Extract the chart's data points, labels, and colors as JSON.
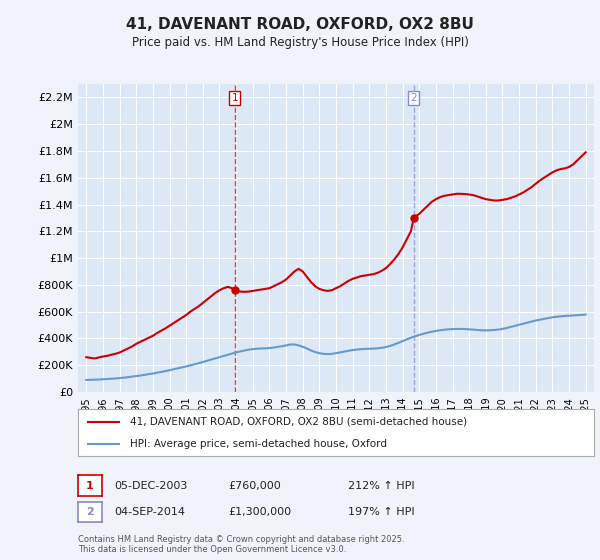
{
  "title": "41, DAVENANT ROAD, OXFORD, OX2 8BU",
  "subtitle": "Price paid vs. HM Land Registry's House Price Index (HPI)",
  "xlabel": "",
  "ylabel": "",
  "bg_color": "#f0f4fa",
  "plot_bg_color": "#dce8f5",
  "grid_color": "#ffffff",
  "red_color": "#cc0000",
  "blue_color": "#6699cc",
  "marker1_year": 2003.92,
  "marker2_year": 2014.67,
  "marker1_price": 760000,
  "marker2_price": 1300000,
  "marker1_label": "1",
  "marker2_label": "2",
  "marker1_date": "05-DEC-2003",
  "marker2_date": "04-SEP-2014",
  "marker1_hpi": "212% ↑ HPI",
  "marker2_hpi": "197% ↑ HPI",
  "legend_red": "41, DAVENANT ROAD, OXFORD, OX2 8BU (semi-detached house)",
  "legend_blue": "HPI: Average price, semi-detached house, Oxford",
  "footer": "Contains HM Land Registry data © Crown copyright and database right 2025.\nThis data is licensed under the Open Government Licence v3.0.",
  "ylim": [
    0,
    2300000
  ],
  "xlim": [
    1994.5,
    2025.5
  ],
  "yticks": [
    0,
    200000,
    400000,
    600000,
    800000,
    1000000,
    1200000,
    1400000,
    1600000,
    1800000,
    2000000,
    2200000
  ],
  "ytick_labels": [
    "£0",
    "£200K",
    "£400K",
    "£600K",
    "£800K",
    "£1M",
    "£1.2M",
    "£1.4M",
    "£1.6M",
    "£1.8M",
    "£2M",
    "£2.2M"
  ],
  "xticks": [
    1995,
    1996,
    1997,
    1998,
    1999,
    2000,
    2001,
    2002,
    2003,
    2004,
    2005,
    2006,
    2007,
    2008,
    2009,
    2010,
    2011,
    2012,
    2013,
    2014,
    2015,
    2016,
    2017,
    2018,
    2019,
    2020,
    2021,
    2022,
    2023,
    2024,
    2025
  ],
  "red_x": [
    1995.0,
    1995.25,
    1995.5,
    1995.75,
    1996.0,
    1996.25,
    1996.5,
    1996.75,
    1997.0,
    1997.25,
    1997.5,
    1997.75,
    1998.0,
    1998.25,
    1998.5,
    1998.75,
    1999.0,
    1999.25,
    1999.5,
    1999.75,
    2000.0,
    2000.25,
    2000.5,
    2000.75,
    2001.0,
    2001.25,
    2001.5,
    2001.75,
    2002.0,
    2002.25,
    2002.5,
    2002.75,
    2003.0,
    2003.25,
    2003.5,
    2003.75,
    2003.92,
    2004.0,
    2004.25,
    2004.5,
    2004.75,
    2005.0,
    2005.25,
    2005.5,
    2005.75,
    2006.0,
    2006.25,
    2006.5,
    2006.75,
    2007.0,
    2007.25,
    2007.5,
    2007.75,
    2008.0,
    2008.25,
    2008.5,
    2008.75,
    2009.0,
    2009.25,
    2009.5,
    2009.75,
    2010.0,
    2010.25,
    2010.5,
    2010.75,
    2011.0,
    2011.25,
    2011.5,
    2011.75,
    2012.0,
    2012.25,
    2012.5,
    2012.75,
    2013.0,
    2013.25,
    2013.5,
    2013.75,
    2014.0,
    2014.25,
    2014.5,
    2014.67,
    2014.75,
    2015.0,
    2015.25,
    2015.5,
    2015.75,
    2016.0,
    2016.25,
    2016.5,
    2016.75,
    2017.0,
    2017.25,
    2017.5,
    2017.75,
    2018.0,
    2018.25,
    2018.5,
    2018.75,
    2019.0,
    2019.25,
    2019.5,
    2019.75,
    2020.0,
    2020.25,
    2020.5,
    2020.75,
    2021.0,
    2021.25,
    2021.5,
    2021.75,
    2022.0,
    2022.25,
    2022.5,
    2022.75,
    2023.0,
    2023.25,
    2023.5,
    2023.75,
    2024.0,
    2024.25,
    2024.5,
    2024.75,
    2025.0
  ],
  "red_y": [
    260000,
    255000,
    250000,
    258000,
    265000,
    270000,
    278000,
    285000,
    295000,
    310000,
    325000,
    340000,
    360000,
    375000,
    390000,
    405000,
    420000,
    440000,
    458000,
    475000,
    495000,
    515000,
    535000,
    555000,
    575000,
    600000,
    620000,
    640000,
    665000,
    690000,
    715000,
    740000,
    760000,
    775000,
    785000,
    775000,
    760000,
    755000,
    750000,
    748000,
    750000,
    755000,
    760000,
    765000,
    770000,
    775000,
    790000,
    805000,
    820000,
    840000,
    870000,
    900000,
    920000,
    900000,
    860000,
    820000,
    790000,
    770000,
    760000,
    755000,
    760000,
    775000,
    790000,
    810000,
    830000,
    845000,
    855000,
    865000,
    870000,
    875000,
    880000,
    890000,
    905000,
    925000,
    955000,
    990000,
    1030000,
    1080000,
    1140000,
    1200000,
    1300000,
    1310000,
    1330000,
    1360000,
    1390000,
    1420000,
    1440000,
    1455000,
    1465000,
    1470000,
    1475000,
    1480000,
    1480000,
    1478000,
    1475000,
    1470000,
    1460000,
    1450000,
    1440000,
    1435000,
    1430000,
    1430000,
    1435000,
    1440000,
    1450000,
    1460000,
    1475000,
    1490000,
    1510000,
    1530000,
    1555000,
    1580000,
    1600000,
    1620000,
    1640000,
    1655000,
    1665000,
    1670000,
    1680000,
    1700000,
    1730000,
    1760000,
    1790000
  ],
  "blue_x": [
    1995.0,
    1995.25,
    1995.5,
    1995.75,
    1996.0,
    1996.25,
    1996.5,
    1996.75,
    1997.0,
    1997.25,
    1997.5,
    1997.75,
    1998.0,
    1998.25,
    1998.5,
    1998.75,
    1999.0,
    1999.25,
    1999.5,
    1999.75,
    2000.0,
    2000.25,
    2000.5,
    2000.75,
    2001.0,
    2001.25,
    2001.5,
    2001.75,
    2002.0,
    2002.25,
    2002.5,
    2002.75,
    2003.0,
    2003.25,
    2003.5,
    2003.75,
    2004.0,
    2004.25,
    2004.5,
    2004.75,
    2005.0,
    2005.25,
    2005.5,
    2005.75,
    2006.0,
    2006.25,
    2006.5,
    2006.75,
    2007.0,
    2007.25,
    2007.5,
    2007.75,
    2008.0,
    2008.25,
    2008.5,
    2008.75,
    2009.0,
    2009.25,
    2009.5,
    2009.75,
    2010.0,
    2010.25,
    2010.5,
    2010.75,
    2011.0,
    2011.25,
    2011.5,
    2011.75,
    2012.0,
    2012.25,
    2012.5,
    2012.75,
    2013.0,
    2013.25,
    2013.5,
    2013.75,
    2014.0,
    2014.25,
    2014.5,
    2014.75,
    2015.0,
    2015.25,
    2015.5,
    2015.75,
    2016.0,
    2016.25,
    2016.5,
    2016.75,
    2017.0,
    2017.25,
    2017.5,
    2017.75,
    2018.0,
    2018.25,
    2018.5,
    2018.75,
    2019.0,
    2019.25,
    2019.5,
    2019.75,
    2020.0,
    2020.25,
    2020.5,
    2020.75,
    2021.0,
    2021.25,
    2021.5,
    2021.75,
    2022.0,
    2022.25,
    2022.5,
    2022.75,
    2023.0,
    2023.25,
    2023.5,
    2023.75,
    2024.0,
    2024.25,
    2024.5,
    2024.75,
    2025.0
  ],
  "blue_y": [
    90000,
    91000,
    92000,
    93000,
    95000,
    97000,
    99000,
    101000,
    104000,
    107000,
    111000,
    115000,
    119000,
    123000,
    128000,
    133000,
    138000,
    144000,
    150000,
    156000,
    163000,
    170000,
    177000,
    184000,
    191000,
    199000,
    207000,
    215000,
    224000,
    233000,
    242000,
    251000,
    260000,
    269000,
    278000,
    287000,
    296000,
    303000,
    310000,
    316000,
    320000,
    323000,
    325000,
    326000,
    328000,
    332000,
    337000,
    342000,
    348000,
    355000,
    355000,
    348000,
    338000,
    325000,
    310000,
    298000,
    290000,
    285000,
    283000,
    285000,
    290000,
    296000,
    302000,
    308000,
    313000,
    317000,
    320000,
    322000,
    323000,
    324000,
    326000,
    330000,
    336000,
    344000,
    355000,
    367000,
    380000,
    393000,
    405000,
    416000,
    426000,
    435000,
    443000,
    450000,
    456000,
    461000,
    465000,
    468000,
    470000,
    471000,
    471000,
    470000,
    468000,
    466000,
    463000,
    461000,
    460000,
    461000,
    463000,
    466000,
    471000,
    478000,
    486000,
    494000,
    502000,
    510000,
    518000,
    526000,
    534000,
    540000,
    546000,
    552000,
    558000,
    562000,
    565000,
    568000,
    570000,
    572000,
    574000,
    576000,
    578000
  ]
}
